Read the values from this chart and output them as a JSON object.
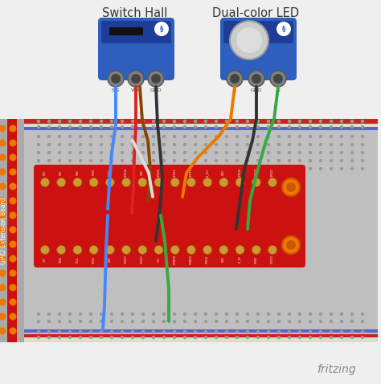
{
  "bg_color": "#efefef",
  "title_switch": "Switch Hall",
  "title_led": "Dual-color LED",
  "fritzing_text": "fritzing",
  "fritzing_color": "#888888",
  "module_blue": "#2e5fbe",
  "module_blue_dark": "#1e3d99",
  "wire_blue": "#4488ff",
  "wire_red": "#dd2222",
  "wire_black": "#333333",
  "wire_brown": "#884400",
  "wire_orange": "#ee7700",
  "wire_green": "#33aa44",
  "wire_white": "#dddddd",
  "breadboard_bg": "#c0bfbf",
  "breadboard_dot": "#aaaaaa",
  "stripe_red": "#cc2222",
  "stripe_blue": "#5566cc",
  "gpio_red": "#cc1111",
  "gpio_gold": "#cc9933",
  "left_panel_bg": "#aaaaaa",
  "left_panel_red": "#cc1111",
  "left_panel_orange_dot": "#ee7700",
  "figw": 4.74,
  "figh": 4.78,
  "dpi": 100
}
